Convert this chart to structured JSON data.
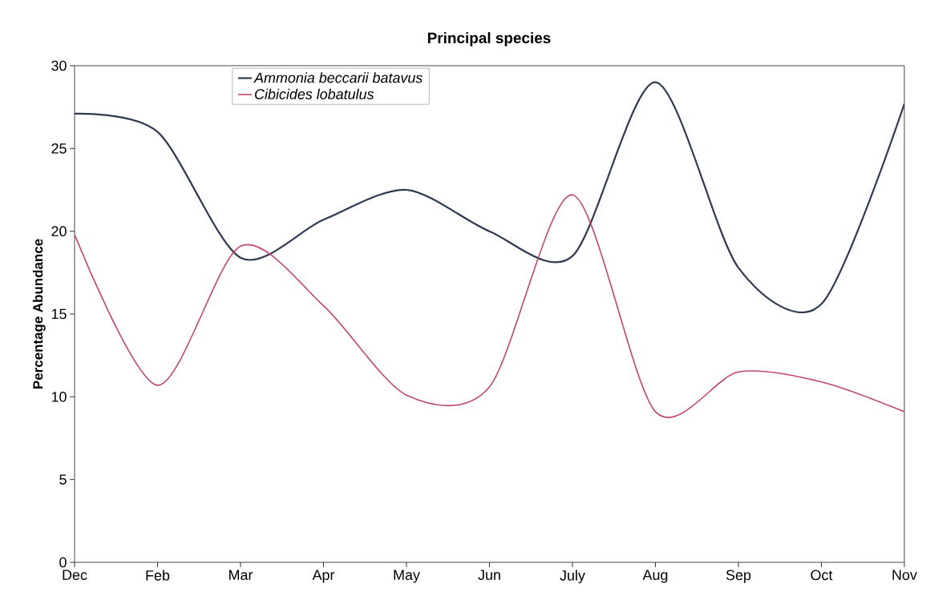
{
  "chart_data": {
    "type": "line",
    "title": "Principal species",
    "ylabel": "Percentage Abundance",
    "categories": [
      "Dec",
      "Feb",
      "Mar",
      "Apr",
      "May",
      "Jun",
      "July",
      "Aug",
      "Sep",
      "Oct",
      "Nov"
    ],
    "series": [
      {
        "name": "Ammonia beccarii batavus",
        "color": "#2f3a52",
        "values": [
          27.1,
          26.0,
          18.4,
          20.7,
          22.5,
          20.0,
          18.5,
          29.0,
          17.8,
          15.6,
          27.7
        ]
      },
      {
        "name": "Cibicides lobatulus",
        "color": "#c2456e",
        "values": [
          19.8,
          10.7,
          19.1,
          15.5,
          10.1,
          10.6,
          22.2,
          9.1,
          11.5,
          10.9,
          9.1
        ]
      }
    ],
    "ylim": [
      0,
      30
    ],
    "yticks": [
      0,
      5,
      10,
      15,
      20,
      25,
      30
    ],
    "legend": "top",
    "grid": false,
    "marker": "none",
    "line_style": "solid"
  }
}
